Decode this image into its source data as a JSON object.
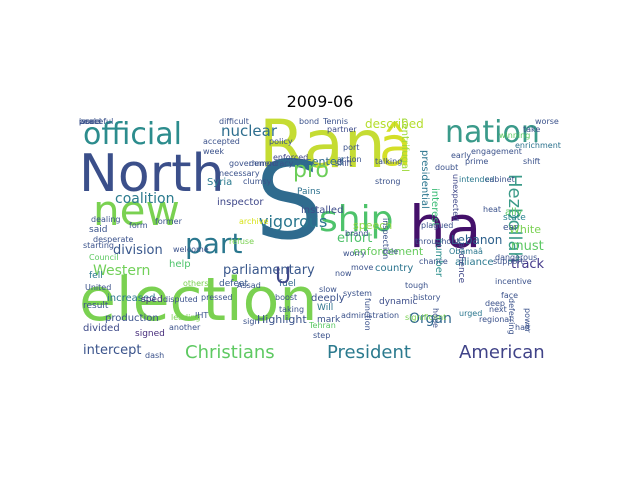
{
  "title": "2009-06",
  "wordcloud": {
    "words": [
      {
        "text": "election",
        "color": "#7ad151"
      },
      {
        "text": "Ran",
        "color": "#c5dc33"
      },
      {
        "text": "S",
        "color": "#2f6b8e"
      },
      {
        "text": "North",
        "color": "#3b4f8a"
      },
      {
        "text": "ha",
        "color": "#44106a"
      },
      {
        "text": "new",
        "color": "#7ad151"
      },
      {
        "text": "â",
        "color": "#d4df28"
      },
      {
        "text": "part",
        "color": "#2a778e"
      },
      {
        "text": "ship",
        "color": "#4ec36b"
      },
      {
        "text": "nation",
        "color": "#3a9a8a"
      },
      {
        "text": "official",
        "color": "#2c8c8d"
      },
      {
        "text": "Hezbollah",
        "color": "#3b9b89"
      },
      {
        "text": "American",
        "color": "#404388"
      },
      {
        "text": "Christians",
        "color": "#5ec962"
      },
      {
        "text": "President",
        "color": "#2b7a8e"
      },
      {
        "text": "pro",
        "color": "#6cce59"
      },
      {
        "text": "nuclear",
        "color": "#2e6e8e"
      },
      {
        "text": "coalition",
        "color": "#2a7a8d"
      },
      {
        "text": "division",
        "color": "#38578c"
      },
      {
        "text": "parliamentary",
        "color": "#3a588c"
      },
      {
        "text": "vigorous",
        "color": "#2a768e"
      },
      {
        "text": "Western",
        "color": "#72d05a"
      },
      {
        "text": "described",
        "color": "#b4dd2b"
      },
      {
        "text": "Lebanon",
        "color": "#2c5f8b"
      },
      {
        "text": "intercept",
        "color": "#3a538b"
      },
      {
        "text": "Organ",
        "color": "#31688e"
      },
      {
        "text": "effort",
        "color": "#4fc16b"
      },
      {
        "text": "track",
        "color": "#44398a"
      },
      {
        "text": "must",
        "color": "#5cc863"
      },
      {
        "text": "enforcement",
        "color": "#66cb5d"
      },
      {
        "text": "White",
        "color": "#79d151"
      },
      {
        "text": "resented",
        "color": "#306a8e"
      },
      {
        "text": "speech",
        "color": "#8fd744"
      },
      {
        "text": "Highlight",
        "color": "#3a538b"
      },
      {
        "text": "production",
        "color": "#3a528b"
      },
      {
        "text": "increased",
        "color": "#2b758e"
      },
      {
        "text": "help",
        "color": "#4dc36b"
      },
      {
        "text": "Syria",
        "color": "#29798e"
      },
      {
        "text": "inspector",
        "color": "#3f4889"
      },
      {
        "text": "interest",
        "color": "#3bbb75"
      },
      {
        "text": "ally",
        "color": "#5ac864"
      },
      {
        "text": "presidential",
        "color": "#2b758e"
      },
      {
        "text": "centrifugal",
        "color": "#9ed93a"
      },
      {
        "text": "deeply",
        "color": "#3b518b"
      },
      {
        "text": "number",
        "color": "#2c8f8c"
      },
      {
        "text": "alliance",
        "color": "#2a788e"
      },
      {
        "text": "country",
        "color": "#2b748e"
      },
      {
        "text": "divided",
        "color": "#3e4a89"
      },
      {
        "text": "installed",
        "color": "#3e4c8a"
      },
      {
        "text": "fuel",
        "color": "#31678e"
      },
      {
        "text": "Will",
        "color": "#2c738e"
      },
      {
        "text": "mark",
        "color": "#3b528b"
      },
      {
        "text": "result",
        "color": "#3b518b"
      },
      {
        "text": "signed",
        "color": "#472d7b"
      },
      {
        "text": "sped",
        "color": "#46307e"
      },
      {
        "text": "fell",
        "color": "#2a778e"
      },
      {
        "text": "said",
        "color": "#3a538b"
      },
      {
        "text": "ear",
        "color": "#3b528b"
      },
      {
        "text": "state",
        "color": "#26828e"
      },
      {
        "text": "audience",
        "color": "#3f4788"
      },
      {
        "text": "dynamic",
        "color": "#3d4e8a"
      },
      {
        "text": "Pains",
        "color": "#2c718e"
      },
      {
        "text": "defeat",
        "color": "#38588c"
      },
      {
        "text": "others",
        "color": "#7ad151"
      },
      {
        "text": "Obamaâ",
        "color": "#2a778e"
      },
      {
        "text": "unexpected",
        "color": "#3f4788"
      },
      {
        "text": "urged",
        "color": "#2a768e"
      },
      {
        "text": "IHT",
        "color": "#3b528b"
      },
      {
        "text": "U",
        "color": "#3f4889"
      },
      {
        "text": "archive",
        "color": "#d8e219"
      },
      {
        "text": "Council",
        "color": "#5ec962"
      },
      {
        "text": "necessary",
        "color": "#3b528b"
      },
      {
        "text": "shift",
        "color": "#3e4c8a"
      },
      {
        "text": "enforced",
        "color": "#414487"
      },
      {
        "text": "Tehran",
        "color": "#5ac864"
      },
      {
        "text": "partner",
        "color": "#3e4c8a"
      },
      {
        "text": "intended",
        "color": "#2a788e"
      },
      {
        "text": "winning",
        "color": "#5ec962"
      },
      {
        "text": "enrichment",
        "color": "#2c728e"
      },
      {
        "text": "week",
        "color": "#3b528b"
      },
      {
        "text": "accepted",
        "color": "#3b528b"
      },
      {
        "text": "difficult",
        "color": "#3b528b"
      },
      {
        "text": "disputed",
        "color": "#3b528b"
      },
      {
        "text": "refuse",
        "color": "#7ad151"
      },
      {
        "text": "chance",
        "color": "#3b528b"
      },
      {
        "text": "significant",
        "color": "#7ad151"
      },
      {
        "text": "regional",
        "color": "#3b528b"
      },
      {
        "text": "halt",
        "color": "#3b528b"
      },
      {
        "text": "take",
        "color": "#3b528b"
      },
      {
        "text": "leading",
        "color": "#7ad151"
      },
      {
        "text": "Tennis",
        "color": "#3b528b"
      },
      {
        "text": "sign",
        "color": "#3b528b"
      },
      {
        "text": "move",
        "color": "#3b528b"
      },
      {
        "text": "now",
        "color": "#3b528b"
      },
      {
        "text": "next",
        "color": "#3b528b"
      },
      {
        "text": "step",
        "color": "#3b528b"
      },
      {
        "text": "slow",
        "color": "#3b528b"
      },
      {
        "text": "another",
        "color": "#3b528b"
      },
      {
        "text": "government",
        "color": "#3b528b"
      },
      {
        "text": "democracy",
        "color": "#3b528b"
      },
      {
        "text": "strong",
        "color": "#3b528b"
      },
      {
        "text": "port",
        "color": "#3b528b"
      },
      {
        "text": "inspection",
        "color": "#3b528b"
      },
      {
        "text": "United",
        "color": "#3b528b"
      },
      {
        "text": "prime",
        "color": "#3b528b"
      },
      {
        "text": "cabinet",
        "color": "#3b528b"
      },
      {
        "text": "role",
        "color": "#3b528b"
      },
      {
        "text": "clumsy",
        "color": "#3b528b"
      },
      {
        "text": "welcome",
        "color": "#3b528b"
      },
      {
        "text": "pressed",
        "color": "#3b528b"
      },
      {
        "text": "plagued",
        "color": "#3b528b"
      },
      {
        "text": "deferring",
        "color": "#3b528b"
      },
      {
        "text": "power",
        "color": "#3b528b"
      },
      {
        "text": "function",
        "color": "#3b528b"
      },
      {
        "text": "dangerous",
        "color": "#3b528b"
      },
      {
        "text": "engagement",
        "color": "#3b528b"
      },
      {
        "text": "incentive",
        "color": "#3b528b"
      },
      {
        "text": "support",
        "color": "#3b528b"
      },
      {
        "text": "system",
        "color": "#3b528b"
      },
      {
        "text": "worse",
        "color": "#3b528b"
      },
      {
        "text": "early",
        "color": "#3b528b"
      },
      {
        "text": "starting",
        "color": "#3b528b"
      },
      {
        "text": "action",
        "color": "#3b528b"
      },
      {
        "text": "tough",
        "color": "#3b528b"
      },
      {
        "text": "history",
        "color": "#3b528b"
      },
      {
        "text": "doubt",
        "color": "#3b528b"
      },
      {
        "text": "hope",
        "color": "#3b528b"
      },
      {
        "text": "administration",
        "color": "#3b528b"
      },
      {
        "text": "bond",
        "color": "#3b528b"
      },
      {
        "text": "throughout",
        "color": "#3b528b"
      },
      {
        "text": "boost",
        "color": "#3b528b"
      },
      {
        "text": "deep",
        "color": "#3b528b"
      },
      {
        "text": "dealing",
        "color": "#3b528b"
      },
      {
        "text": "form",
        "color": "#3b528b"
      },
      {
        "text": "worry",
        "color": "#3b528b"
      },
      {
        "text": "policy",
        "color": "#3b528b"
      },
      {
        "text": "talking",
        "color": "#3b528b"
      },
      {
        "text": "heat",
        "color": "#3b528b"
      },
      {
        "text": "Assad",
        "color": "#3b528b"
      },
      {
        "text": "brand",
        "color": "#3b528b"
      },
      {
        "text": "former",
        "color": "#3b528b"
      },
      {
        "text": "taking",
        "color": "#3b528b"
      },
      {
        "text": "dash",
        "color": "#3b528b"
      },
      {
        "text": "desperate",
        "color": "#3b528b"
      },
      {
        "text": "shift",
        "color": "#3b528b"
      },
      {
        "text": "face",
        "color": "#3b528b"
      },
      {
        "text": "peace",
        "color": "#3b528b"
      },
      {
        "text": "world",
        "color": "#3b528b"
      },
      {
        "text": "peaceful",
        "color": "#3b528b"
      },
      {
        "text": "issue",
        "color": "#3b528b"
      }
    ]
  }
}
